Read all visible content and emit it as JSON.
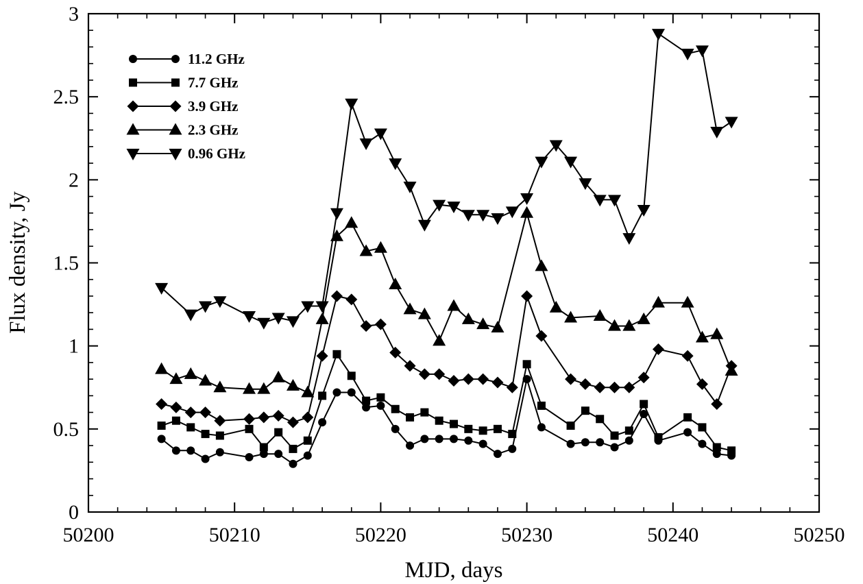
{
  "chart_data": {
    "type": "line",
    "xlabel": "MJD, days",
    "ylabel": "Flux density, Jy",
    "xlim": [
      50200,
      50250
    ],
    "ylim": [
      0,
      3
    ],
    "xticks": [
      "50200",
      "50210",
      "50220",
      "50230",
      "50240",
      "50250"
    ],
    "yticks": [
      "0",
      "0.5",
      "1",
      "1.5",
      "2",
      "2.5",
      "3"
    ],
    "legend_position": "top-left",
    "grid": false,
    "series": [
      {
        "name": "11.2 GHz",
        "marker": "circle",
        "points": [
          [
            50205,
            0.44
          ],
          [
            50206,
            0.37
          ],
          [
            50207,
            0.37
          ],
          [
            50208,
            0.32
          ],
          [
            50209,
            0.36
          ],
          [
            50211,
            0.33
          ],
          [
            50212,
            0.35
          ],
          [
            50213,
            0.35
          ],
          [
            50214,
            0.29
          ],
          [
            50215,
            0.34
          ],
          [
            50216,
            0.54
          ],
          [
            50217,
            0.72
          ],
          [
            50218,
            0.72
          ],
          [
            50219,
            0.63
          ],
          [
            50220,
            0.64
          ],
          [
            50221,
            0.5
          ],
          [
            50222,
            0.4
          ],
          [
            50223,
            0.44
          ],
          [
            50224,
            0.44
          ],
          [
            50225,
            0.44
          ],
          [
            50226,
            0.43
          ],
          [
            50227,
            0.41
          ],
          [
            50228,
            0.35
          ],
          [
            50229,
            0.38
          ],
          [
            50230,
            0.8
          ],
          [
            50231,
            0.51
          ],
          [
            50233,
            0.41
          ],
          [
            50234,
            0.42
          ],
          [
            50235,
            0.42
          ],
          [
            50236,
            0.39
          ],
          [
            50237,
            0.43
          ],
          [
            50238,
            0.59
          ],
          [
            50239,
            0.43
          ],
          [
            50241,
            0.48
          ],
          [
            50242,
            0.41
          ],
          [
            50243,
            0.35
          ],
          [
            50244,
            0.34
          ]
        ]
      },
      {
        "name": "7.7 GHz",
        "marker": "square",
        "points": [
          [
            50205,
            0.52
          ],
          [
            50206,
            0.55
          ],
          [
            50207,
            0.51
          ],
          [
            50208,
            0.47
          ],
          [
            50209,
            0.46
          ],
          [
            50211,
            0.5
          ],
          [
            50212,
            0.39
          ],
          [
            50213,
            0.48
          ],
          [
            50214,
            0.38
          ],
          [
            50215,
            0.43
          ],
          [
            50216,
            0.7
          ],
          [
            50217,
            0.95
          ],
          [
            50218,
            0.82
          ],
          [
            50219,
            0.67
          ],
          [
            50220,
            0.69
          ],
          [
            50221,
            0.62
          ],
          [
            50222,
            0.57
          ],
          [
            50223,
            0.6
          ],
          [
            50224,
            0.55
          ],
          [
            50225,
            0.53
          ],
          [
            50226,
            0.5
          ],
          [
            50227,
            0.49
          ],
          [
            50228,
            0.5
          ],
          [
            50229,
            0.47
          ],
          [
            50230,
            0.89
          ],
          [
            50231,
            0.64
          ],
          [
            50233,
            0.52
          ],
          [
            50234,
            0.61
          ],
          [
            50235,
            0.56
          ],
          [
            50236,
            0.46
          ],
          [
            50237,
            0.49
          ],
          [
            50238,
            0.65
          ],
          [
            50239,
            0.45
          ],
          [
            50241,
            0.57
          ],
          [
            50242,
            0.51
          ],
          [
            50243,
            0.39
          ],
          [
            50244,
            0.37
          ]
        ]
      },
      {
        "name": "3.9 GHz",
        "marker": "diamond",
        "points": [
          [
            50205,
            0.65
          ],
          [
            50206,
            0.63
          ],
          [
            50207,
            0.6
          ],
          [
            50208,
            0.6
          ],
          [
            50209,
            0.55
          ],
          [
            50211,
            0.56
          ],
          [
            50212,
            0.57
          ],
          [
            50213,
            0.58
          ],
          [
            50214,
            0.54
          ],
          [
            50215,
            0.57
          ],
          [
            50216,
            0.94
          ],
          [
            50217,
            1.3
          ],
          [
            50218,
            1.28
          ],
          [
            50219,
            1.12
          ],
          [
            50220,
            1.13
          ],
          [
            50221,
            0.96
          ],
          [
            50222,
            0.88
          ],
          [
            50223,
            0.83
          ],
          [
            50224,
            0.83
          ],
          [
            50225,
            0.79
          ],
          [
            50226,
            0.8
          ],
          [
            50227,
            0.8
          ],
          [
            50228,
            0.78
          ],
          [
            50229,
            0.75
          ],
          [
            50230,
            1.3
          ],
          [
            50231,
            1.06
          ],
          [
            50233,
            0.8
          ],
          [
            50234,
            0.77
          ],
          [
            50235,
            0.75
          ],
          [
            50236,
            0.75
          ],
          [
            50237,
            0.75
          ],
          [
            50238,
            0.81
          ],
          [
            50239,
            0.98
          ],
          [
            50241,
            0.94
          ],
          [
            50242,
            0.77
          ],
          [
            50243,
            0.65
          ],
          [
            50244,
            0.88
          ]
        ]
      },
      {
        "name": "2.3 GHz",
        "marker": "triangle-up",
        "points": [
          [
            50205,
            0.86
          ],
          [
            50206,
            0.8
          ],
          [
            50207,
            0.83
          ],
          [
            50208,
            0.79
          ],
          [
            50209,
            0.75
          ],
          [
            50211,
            0.74
          ],
          [
            50212,
            0.74
          ],
          [
            50213,
            0.81
          ],
          [
            50214,
            0.76
          ],
          [
            50215,
            0.72
          ],
          [
            50216,
            1.16
          ],
          [
            50217,
            1.66
          ],
          [
            50218,
            1.74
          ],
          [
            50219,
            1.57
          ],
          [
            50220,
            1.59
          ],
          [
            50221,
            1.37
          ],
          [
            50222,
            1.22
          ],
          [
            50223,
            1.19
          ],
          [
            50224,
            1.03
          ],
          [
            50225,
            1.24
          ],
          [
            50226,
            1.16
          ],
          [
            50227,
            1.13
          ],
          [
            50228,
            1.11
          ],
          [
            50230,
            1.8
          ],
          [
            50231,
            1.48
          ],
          [
            50232,
            1.23
          ],
          [
            50233,
            1.17
          ],
          [
            50235,
            1.18
          ],
          [
            50236,
            1.12
          ],
          [
            50237,
            1.12
          ],
          [
            50238,
            1.16
          ],
          [
            50239,
            1.26
          ],
          [
            50241,
            1.26
          ],
          [
            50242,
            1.05
          ],
          [
            50243,
            1.07
          ],
          [
            50244,
            0.85
          ]
        ]
      },
      {
        "name": "0.96 GHz",
        "marker": "triangle-down",
        "points": [
          [
            50205,
            1.35
          ],
          [
            50207,
            1.19
          ],
          [
            50208,
            1.24
          ],
          [
            50209,
            1.27
          ],
          [
            50211,
            1.18
          ],
          [
            50212,
            1.14
          ],
          [
            50213,
            1.17
          ],
          [
            50214,
            1.15
          ],
          [
            50215,
            1.24
          ],
          [
            50216,
            1.24
          ],
          [
            50217,
            1.8
          ],
          [
            50218,
            2.46
          ],
          [
            50219,
            2.22
          ],
          [
            50220,
            2.28
          ],
          [
            50221,
            2.1
          ],
          [
            50222,
            1.96
          ],
          [
            50223,
            1.73
          ],
          [
            50224,
            1.85
          ],
          [
            50225,
            1.84
          ],
          [
            50226,
            1.79
          ],
          [
            50227,
            1.79
          ],
          [
            50228,
            1.77
          ],
          [
            50229,
            1.81
          ],
          [
            50230,
            1.89
          ],
          [
            50231,
            2.11
          ],
          [
            50232,
            2.21
          ],
          [
            50233,
            2.11
          ],
          [
            50234,
            1.98
          ],
          [
            50235,
            1.88
          ],
          [
            50236,
            1.88
          ],
          [
            50237,
            1.65
          ],
          [
            50238,
            1.82
          ],
          [
            50239,
            2.88
          ],
          [
            50241,
            2.76
          ],
          [
            50242,
            2.78
          ],
          [
            50243,
            2.29
          ],
          [
            50244,
            2.35
          ]
        ]
      }
    ]
  }
}
